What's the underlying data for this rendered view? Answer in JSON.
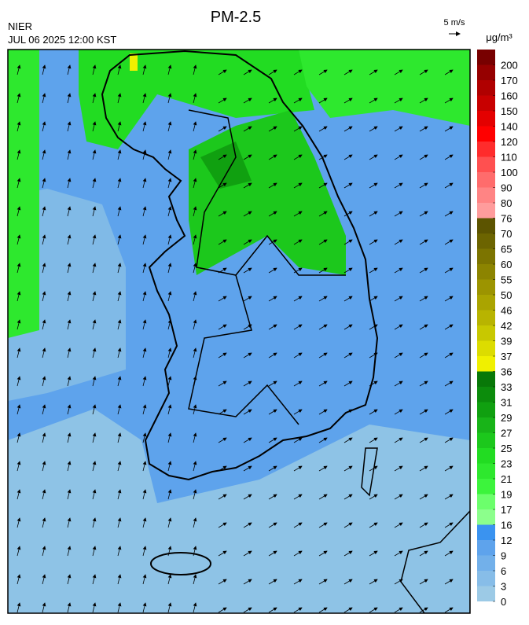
{
  "header": {
    "title": "PM-2.5",
    "agency": "NIER",
    "datetime": "JUL 06 2025 12:00 KST",
    "wind_scale": "5 m/s"
  },
  "colorbar": {
    "unit": "μg/m³",
    "levels": [
      0,
      3,
      6,
      9,
      12,
      16,
      17,
      19,
      21,
      23,
      25,
      27,
      29,
      31,
      33,
      36,
      37,
      39,
      42,
      46,
      50,
      55,
      60,
      65,
      70,
      76,
      80,
      90,
      100,
      110,
      120,
      140,
      150,
      160,
      170,
      200
    ],
    "colors": [
      "#9ccae6",
      "#87bde8",
      "#72b0ea",
      "#5ea3ec",
      "#3a93f0",
      "#8cff8c",
      "#6cff6c",
      "#3cf43c",
      "#2ee82e",
      "#22dc22",
      "#1cc81c",
      "#18b418",
      "#10a010",
      "#0c8c0c",
      "#087808",
      "#f0f000",
      "#dcdc00",
      "#c8c800",
      "#b8b400",
      "#aaa400",
      "#9c9400",
      "#8c8400",
      "#7c7400",
      "#6c6400",
      "#5c5400",
      "#ff9c9c",
      "#ff8484",
      "#ff6c6c",
      "#ff5050",
      "#ff2c2c",
      "#ff0000",
      "#e40000",
      "#c80000",
      "#b00000",
      "#960000",
      "#780000"
    ]
  }
}
